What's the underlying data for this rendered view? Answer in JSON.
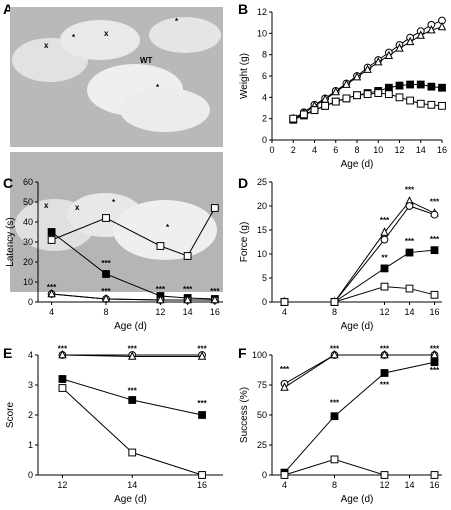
{
  "panels": {
    "A": {
      "letter": "A",
      "labels_top": [
        "*",
        "x",
        "x",
        "*",
        "WT",
        "*"
      ],
      "labels_bottom": [
        "x",
        "x",
        "*",
        "*"
      ]
    }
  },
  "chart_data": [
    {
      "id": "B",
      "type": "line",
      "xlabel": "Age (d)",
      "ylabel": "Weight (g)",
      "xlim": [
        0,
        16
      ],
      "ylim": [
        0,
        12
      ],
      "xticks": [
        0,
        2,
        4,
        6,
        8,
        10,
        12,
        14,
        16
      ],
      "yticks": [
        0,
        2,
        4,
        6,
        8,
        10,
        12
      ],
      "series": [
        {
          "marker": "open-circle",
          "x": [
            2,
            3,
            4,
            5,
            6,
            7,
            8,
            9,
            10,
            11,
            12,
            13,
            14,
            15,
            16
          ],
          "y": [
            2.0,
            2.6,
            3.3,
            3.9,
            4.6,
            5.3,
            6.0,
            6.8,
            7.5,
            8.2,
            8.9,
            9.6,
            10.2,
            10.8,
            11.2
          ]
        },
        {
          "marker": "open-triangle",
          "x": [
            2,
            3,
            4,
            5,
            6,
            7,
            8,
            9,
            10,
            11,
            12,
            13,
            14,
            15,
            16
          ],
          "y": [
            2.0,
            2.5,
            3.2,
            3.8,
            4.5,
            5.2,
            5.9,
            6.6,
            7.3,
            7.9,
            8.6,
            9.2,
            9.8,
            10.3,
            10.6
          ]
        },
        {
          "marker": "filled-square",
          "x": [
            2,
            3,
            4,
            5,
            6,
            7,
            8,
            9,
            10,
            11,
            12,
            13,
            14,
            15,
            16
          ],
          "y": [
            1.9,
            2.3,
            2.8,
            3.2,
            3.6,
            3.9,
            4.2,
            4.4,
            4.6,
            4.9,
            5.1,
            5.2,
            5.2,
            5.0,
            4.9
          ]
        },
        {
          "marker": "open-square",
          "x": [
            2,
            3,
            4,
            5,
            6,
            7,
            8,
            9,
            10,
            11,
            12,
            13,
            14,
            15,
            16
          ],
          "y": [
            2.0,
            2.4,
            2.8,
            3.2,
            3.6,
            3.9,
            4.2,
            4.3,
            4.4,
            4.3,
            4.0,
            3.7,
            3.4,
            3.3,
            3.2
          ]
        }
      ],
      "significance": []
    },
    {
      "id": "C",
      "type": "line",
      "xlabel": "Age (d)",
      "ylabel": "Latency (s)",
      "xlim": [
        3,
        16.6
      ],
      "ylim": [
        0,
        60
      ],
      "xticks": [
        4,
        8,
        12,
        14,
        16
      ],
      "yticks": [
        0,
        10,
        20,
        30,
        40,
        50,
        60
      ],
      "series": [
        {
          "marker": "open-square",
          "x": [
            4,
            8,
            12,
            14,
            16
          ],
          "y": [
            31,
            42,
            28,
            23,
            47
          ]
        },
        {
          "marker": "filled-square",
          "x": [
            4,
            8,
            12,
            14,
            16
          ],
          "y": [
            35,
            14,
            3,
            2,
            1.5
          ]
        },
        {
          "marker": "open-circle",
          "x": [
            4,
            8,
            12,
            14,
            16
          ],
          "y": [
            4,
            1.5,
            1,
            1,
            1
          ]
        },
        {
          "marker": "open-triangle",
          "x": [
            4,
            8,
            12,
            14,
            16
          ],
          "y": [
            4,
            1.5,
            1,
            1,
            1
          ]
        }
      ],
      "significance": [
        {
          "x": 4,
          "y": 6,
          "text": "***"
        },
        {
          "x": 8,
          "y": 18,
          "text": "***"
        },
        {
          "x": 8,
          "y": 4,
          "text": "***"
        },
        {
          "x": 12,
          "y": 5,
          "text": "***"
        },
        {
          "x": 14,
          "y": 5,
          "text": "***"
        },
        {
          "x": 16,
          "y": 4,
          "text": "***"
        }
      ]
    },
    {
      "id": "D",
      "type": "line",
      "xlabel": "Age (d)",
      "ylabel": "Force (g)",
      "xlim": [
        3,
        16.6
      ],
      "ylim": [
        0,
        25
      ],
      "xticks": [
        4,
        8,
        12,
        14,
        16
      ],
      "yticks": [
        0,
        5,
        10,
        15,
        20,
        25
      ],
      "series": [
        {
          "marker": "open-triangle",
          "x": [
            4,
            8,
            12,
            14,
            16
          ],
          "y": [
            0,
            0,
            14.5,
            21,
            18.5
          ]
        },
        {
          "marker": "open-circle",
          "x": [
            4,
            8,
            12,
            14,
            16
          ],
          "y": [
            0,
            0,
            13,
            20,
            18.2
          ]
        },
        {
          "marker": "filled-square",
          "x": [
            4,
            8,
            12,
            14,
            16
          ],
          "y": [
            0,
            0,
            7,
            10.3,
            10.8
          ]
        },
        {
          "marker": "open-square",
          "x": [
            4,
            8,
            12,
            14,
            16
          ],
          "y": [
            0,
            0,
            3.2,
            2.8,
            1.5
          ]
        }
      ],
      "significance": [
        {
          "x": 12,
          "y": 16.5,
          "text": "***"
        },
        {
          "x": 14,
          "y": 22.8,
          "text": "***"
        },
        {
          "x": 16,
          "y": 20.3,
          "text": "***"
        },
        {
          "x": 12,
          "y": 8.6,
          "text": "**"
        },
        {
          "x": 14,
          "y": 12.1,
          "text": "***"
        },
        {
          "x": 16,
          "y": 12.5,
          "text": "***"
        }
      ]
    },
    {
      "id": "E",
      "type": "line",
      "xlabel": "Age (d)",
      "ylabel": "Score",
      "xlim": [
        11.3,
        16.6
      ],
      "ylim": [
        0,
        4
      ],
      "xticks": [
        12,
        14,
        16
      ],
      "yticks": [
        0,
        1,
        2,
        3,
        4
      ],
      "series": [
        {
          "marker": "open-circle",
          "x": [
            12,
            14,
            16
          ],
          "y": [
            4,
            4,
            4
          ]
        },
        {
          "marker": "open-triangle",
          "x": [
            12,
            14,
            16
          ],
          "y": [
            4,
            3.95,
            3.95
          ]
        },
        {
          "marker": "filled-square",
          "x": [
            12,
            14,
            16
          ],
          "y": [
            3.2,
            2.5,
            2.0
          ]
        },
        {
          "marker": "open-square",
          "x": [
            12,
            14,
            16
          ],
          "y": [
            2.9,
            0.75,
            0
          ]
        }
      ],
      "significance": [
        {
          "x": 12,
          "y": 4.12,
          "text": "***"
        },
        {
          "x": 14,
          "y": 4.12,
          "text": "***"
        },
        {
          "x": 16,
          "y": 4.12,
          "text": "***"
        },
        {
          "x": 14,
          "y": 2.72,
          "text": "***"
        },
        {
          "x": 16,
          "y": 2.3,
          "text": "***"
        }
      ]
    },
    {
      "id": "F",
      "type": "line",
      "xlabel": "Age (d)",
      "ylabel": "Success (%)",
      "xlim": [
        3,
        16.6
      ],
      "ylim": [
        0,
        100
      ],
      "xticks": [
        4,
        8,
        12,
        14,
        16
      ],
      "yticks": [
        0,
        25,
        50,
        75,
        100
      ],
      "series": [
        {
          "marker": "open-circle",
          "x": [
            4,
            8,
            12,
            16
          ],
          "y": [
            76,
            100,
            100,
            100
          ]
        },
        {
          "marker": "open-triangle",
          "x": [
            4,
            8,
            12,
            16
          ],
          "y": [
            73,
            100,
            100,
            100
          ]
        },
        {
          "marker": "filled-square",
          "x": [
            4,
            8,
            12,
            16
          ],
          "y": [
            2,
            49,
            85,
            94
          ]
        },
        {
          "marker": "open-square",
          "x": [
            4,
            8,
            12,
            16
          ],
          "y": [
            0,
            13,
            0,
            0
          ]
        }
      ],
      "significance": [
        {
          "x": 4,
          "y": 86,
          "text": "***"
        },
        {
          "x": 8,
          "y": 103,
          "text": "***"
        },
        {
          "x": 12,
          "y": 103,
          "text": "***"
        },
        {
          "x": 16,
          "y": 103,
          "text": "***"
        },
        {
          "x": 8,
          "y": 58,
          "text": "***"
        },
        {
          "x": 12,
          "y": 73,
          "text": "***"
        },
        {
          "x": 16,
          "y": 85,
          "text": "***"
        }
      ]
    }
  ]
}
